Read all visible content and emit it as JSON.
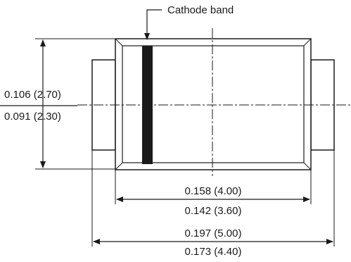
{
  "callout": {
    "label": "Cathode band"
  },
  "height_dimension": {
    "max": "0.106 (2.70)",
    "min": "0.091 (2.30)"
  },
  "body_length_dimension": {
    "max": "0.158 (4.00)",
    "min": "0.142 (3.60)"
  },
  "overall_length_dimension": {
    "max": "0.197 (5.00)",
    "min": "0.173 (4.40)"
  },
  "colors": {
    "line": "#1a1a1a",
    "background": "#ffffff"
  }
}
